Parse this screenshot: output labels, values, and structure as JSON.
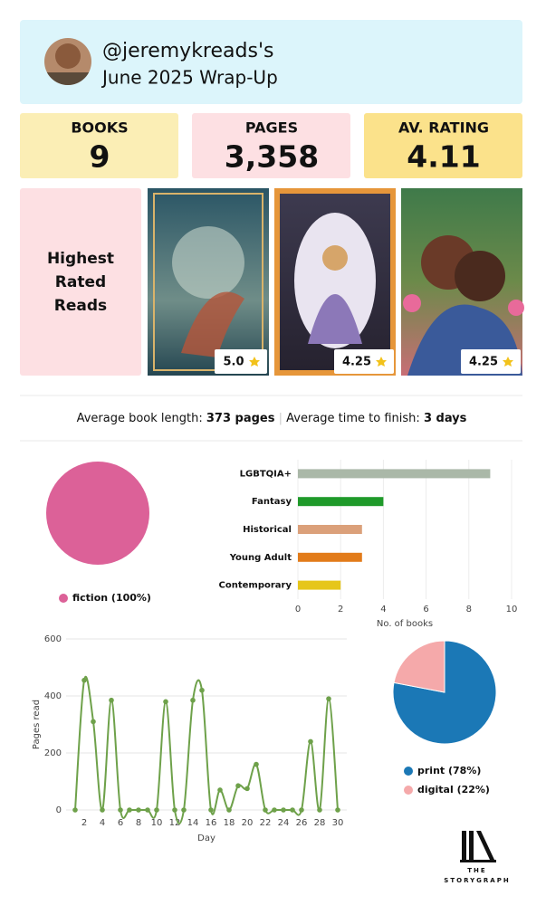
{
  "header": {
    "handle": "@jeremykreads's",
    "subtitle": "June 2025 Wrap-Up"
  },
  "stats": [
    {
      "label": "BOOKS",
      "value": "9"
    },
    {
      "label": "PAGES",
      "value": "3,358"
    },
    {
      "label": "AV. RATING",
      "value": "4.11"
    }
  ],
  "highest_rated": {
    "label": [
      "Highest",
      "Rated",
      "Reads"
    ],
    "ratings": [
      "5.0",
      "4.25",
      "4.25"
    ]
  },
  "averages": {
    "length_label": "Average book length:",
    "length_value": "373 pages",
    "time_label": "Average time to finish:",
    "time_value": "3 days"
  },
  "chart_data": [
    {
      "type": "pie",
      "categories": [
        "fiction (100%)"
      ],
      "values": [
        100
      ],
      "colors": [
        "#dc6198"
      ]
    },
    {
      "type": "barh",
      "categories": [
        "LGBTQIA+",
        "Fantasy",
        "Historical",
        "Young Adult",
        "Contemporary"
      ],
      "values": [
        9,
        4,
        3,
        3,
        2
      ],
      "colors": [
        "#aab8a8",
        "#1f9a2a",
        "#dba07a",
        "#e27b1a",
        "#e6c61a"
      ],
      "xlim": [
        0,
        10
      ],
      "xticks": [
        0,
        2,
        4,
        6,
        8,
        10
      ],
      "xlabel": "No. of books",
      "grid": true
    },
    {
      "type": "line",
      "x": [
        1,
        2,
        3,
        4,
        5,
        6,
        7,
        8,
        9,
        10,
        11,
        12,
        13,
        14,
        15,
        16,
        17,
        18,
        19,
        20,
        21,
        22,
        23,
        24,
        25,
        26,
        27,
        28,
        29,
        30
      ],
      "values": [
        0,
        455,
        310,
        0,
        385,
        0,
        0,
        0,
        0,
        0,
        380,
        0,
        0,
        385,
        420,
        0,
        70,
        0,
        85,
        75,
        160,
        0,
        0,
        0,
        0,
        0,
        240,
        0,
        390,
        0
      ],
      "color": "#6ea14a",
      "xlim": [
        0,
        31
      ],
      "ylim": [
        0,
        600
      ],
      "xticks": [
        2,
        4,
        6,
        8,
        10,
        12,
        14,
        16,
        18,
        20,
        22,
        24,
        26,
        28,
        30
      ],
      "yticks": [
        0,
        200,
        400,
        600
      ],
      "xlabel": "Day",
      "ylabel": "Pages read",
      "grid": true
    },
    {
      "type": "pie",
      "categories": [
        "print (78%)",
        "digital (22%)"
      ],
      "values": [
        78,
        22
      ],
      "colors": [
        "#1b78b6",
        "#f5a9aa"
      ]
    }
  ],
  "footer": {
    "logo": [
      "THE",
      "STORYGRAPH"
    ]
  }
}
